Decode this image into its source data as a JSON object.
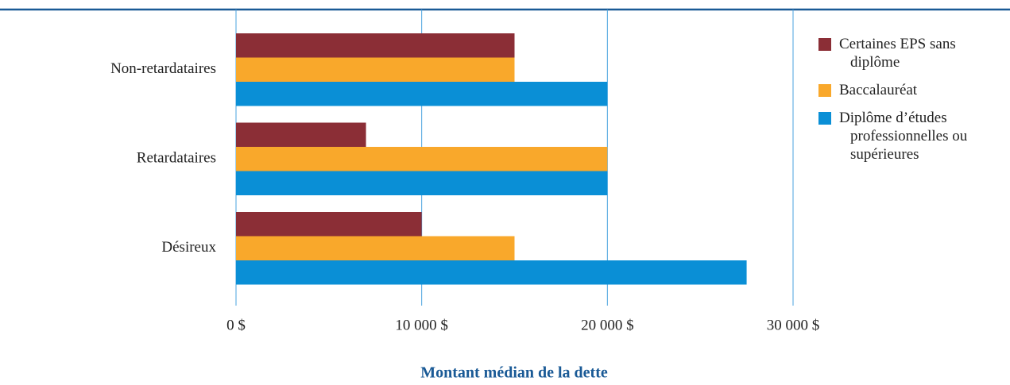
{
  "chart_data": {
    "type": "bar",
    "orientation": "horizontal",
    "xlabel": "Montant médian de la dette",
    "categories": [
      "Non-retardataires",
      "Retardataires",
      "Désireux"
    ],
    "series": [
      {
        "name": "Certaines EPS sans diplôme",
        "color": "#8b2e36",
        "values": [
          15000,
          7000,
          10000
        ]
      },
      {
        "name": "Baccalauréat",
        "color": "#f9a82b",
        "values": [
          15000,
          20000,
          15000
        ]
      },
      {
        "name": "Diplôme d’études professionnelles ou supérieures",
        "color": "#0a8fd6",
        "values": [
          20000,
          20000,
          27500
        ]
      }
    ],
    "xlim": [
      0,
      30000
    ],
    "xticks": [
      {
        "value": 0,
        "label": "0 $"
      },
      {
        "value": 10000,
        "label": "10 000 $"
      },
      {
        "value": 20000,
        "label": "20 000 $"
      },
      {
        "value": 30000,
        "label": "30 000 $"
      }
    ],
    "grid": true,
    "legend": "right"
  }
}
